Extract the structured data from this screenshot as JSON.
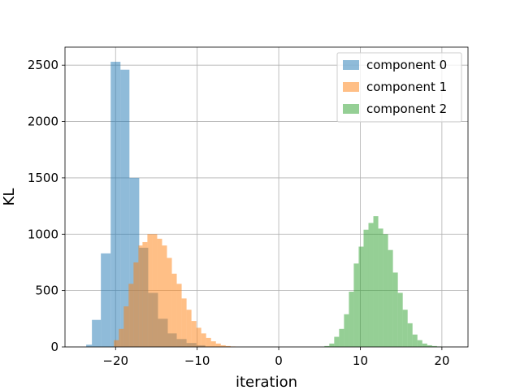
{
  "chart_data": {
    "type": "histogram",
    "title": "",
    "xlabel": "iteration",
    "ylabel": "KL",
    "xlim": [
      -26.2,
      23.2
    ],
    "ylim": [
      0,
      2660
    ],
    "xticks": [
      -20,
      -10,
      0,
      10,
      20
    ],
    "xtick_labels": [
      "−20",
      "−10",
      "0",
      "10",
      "20"
    ],
    "yticks": [
      0,
      500,
      1000,
      1500,
      2000,
      2500
    ],
    "ytick_labels": [
      "0",
      "500",
      "1000",
      "1500",
      "2000",
      "2500"
    ],
    "grid": true,
    "legend_position": "top-right",
    "alpha": 0.5,
    "series": [
      {
        "name": "component 0",
        "color": "#1f77b4",
        "bins": [
          {
            "x0": -23.6,
            "x1": -22.9,
            "count": 20
          },
          {
            "x0": -22.9,
            "x1": -21.8,
            "count": 240
          },
          {
            "x0": -21.8,
            "x1": -20.6,
            "count": 830
          },
          {
            "x0": -20.6,
            "x1": -19.4,
            "count": 2530
          },
          {
            "x0": -19.4,
            "x1": -18.3,
            "count": 2460
          },
          {
            "x0": -18.3,
            "x1": -17.1,
            "count": 1500
          },
          {
            "x0": -17.1,
            "x1": -16.0,
            "count": 880
          },
          {
            "x0": -16.0,
            "x1": -14.8,
            "count": 480
          },
          {
            "x0": -14.8,
            "x1": -13.6,
            "count": 250
          },
          {
            "x0": -13.6,
            "x1": -12.5,
            "count": 120
          },
          {
            "x0": -12.5,
            "x1": -11.3,
            "count": 70
          },
          {
            "x0": -11.3,
            "x1": -10.1,
            "count": 35
          },
          {
            "x0": -10.1,
            "x1": -9.0,
            "count": 15
          }
        ]
      },
      {
        "name": "component 1",
        "color": "#ff7f0e",
        "bins": [
          {
            "x0": -20.2,
            "x1": -19.6,
            "count": 60
          },
          {
            "x0": -19.6,
            "x1": -19.0,
            "count": 160
          },
          {
            "x0": -19.0,
            "x1": -18.4,
            "count": 360
          },
          {
            "x0": -18.4,
            "x1": -17.8,
            "count": 560
          },
          {
            "x0": -17.8,
            "x1": -17.2,
            "count": 750
          },
          {
            "x0": -17.2,
            "x1": -16.7,
            "count": 900
          },
          {
            "x0": -16.7,
            "x1": -16.1,
            "count": 930
          },
          {
            "x0": -16.1,
            "x1": -15.5,
            "count": 1000
          },
          {
            "x0": -15.5,
            "x1": -14.9,
            "count": 1000
          },
          {
            "x0": -14.9,
            "x1": -14.3,
            "count": 960
          },
          {
            "x0": -14.3,
            "x1": -13.7,
            "count": 900
          },
          {
            "x0": -13.7,
            "x1": -13.1,
            "count": 790
          },
          {
            "x0": -13.1,
            "x1": -12.5,
            "count": 650
          },
          {
            "x0": -12.5,
            "x1": -11.9,
            "count": 560
          },
          {
            "x0": -11.9,
            "x1": -11.3,
            "count": 430
          },
          {
            "x0": -11.3,
            "x1": -10.7,
            "count": 330
          },
          {
            "x0": -10.7,
            "x1": -10.1,
            "count": 230
          },
          {
            "x0": -10.1,
            "x1": -9.5,
            "count": 170
          },
          {
            "x0": -9.5,
            "x1": -8.9,
            "count": 120
          },
          {
            "x0": -8.9,
            "x1": -8.3,
            "count": 80
          },
          {
            "x0": -8.3,
            "x1": -7.7,
            "count": 50
          },
          {
            "x0": -7.7,
            "x1": -7.1,
            "count": 30
          },
          {
            "x0": -7.1,
            "x1": -6.5,
            "count": 15
          },
          {
            "x0": -6.5,
            "x1": -5.9,
            "count": 8
          },
          {
            "x0": -5.9,
            "x1": -5.3,
            "count": 4
          }
        ]
      },
      {
        "name": "component 2",
        "color": "#2ca02c",
        "bins": [
          {
            "x0": 5.6,
            "x1": 6.2,
            "count": 8
          },
          {
            "x0": 6.2,
            "x1": 6.8,
            "count": 30
          },
          {
            "x0": 6.8,
            "x1": 7.4,
            "count": 90
          },
          {
            "x0": 7.4,
            "x1": 8.0,
            "count": 160
          },
          {
            "x0": 8.0,
            "x1": 8.6,
            "count": 290
          },
          {
            "x0": 8.6,
            "x1": 9.2,
            "count": 490
          },
          {
            "x0": 9.2,
            "x1": 9.8,
            "count": 740
          },
          {
            "x0": 9.8,
            "x1": 10.4,
            "count": 890
          },
          {
            "x0": 10.4,
            "x1": 11.0,
            "count": 1040
          },
          {
            "x0": 11.0,
            "x1": 11.6,
            "count": 1100
          },
          {
            "x0": 11.6,
            "x1": 12.2,
            "count": 1160
          },
          {
            "x0": 12.2,
            "x1": 12.8,
            "count": 1050
          },
          {
            "x0": 12.8,
            "x1": 13.4,
            "count": 1000
          },
          {
            "x0": 13.4,
            "x1": 14.0,
            "count": 860
          },
          {
            "x0": 14.0,
            "x1": 14.6,
            "count": 660
          },
          {
            "x0": 14.6,
            "x1": 15.2,
            "count": 480
          },
          {
            "x0": 15.2,
            "x1": 15.8,
            "count": 330
          },
          {
            "x0": 15.8,
            "x1": 16.4,
            "count": 210
          },
          {
            "x0": 16.4,
            "x1": 17.0,
            "count": 110
          },
          {
            "x0": 17.0,
            "x1": 17.6,
            "count": 60
          },
          {
            "x0": 17.6,
            "x1": 18.2,
            "count": 30
          },
          {
            "x0": 18.2,
            "x1": 18.8,
            "count": 15
          },
          {
            "x0": 18.8,
            "x1": 19.4,
            "count": 8
          },
          {
            "x0": 19.4,
            "x1": 20.0,
            "count": 4
          }
        ]
      }
    ]
  }
}
